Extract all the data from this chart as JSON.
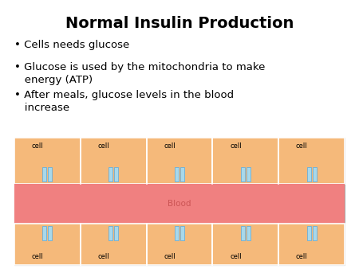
{
  "title": "Normal Insulin Production",
  "bullets": [
    "Cells needs glucose",
    "Glucose is used by the mitochondria to make\nenergy (ATP)",
    "After meals, glucose levels in the blood\nincrease"
  ],
  "cell_color": "#F5B97A",
  "blood_color": "#F08080",
  "blood_label": "Blood",
  "cell_label": "cell",
  "cell_receptor_color": "#A8D8EA",
  "cell_receptor_edge": "#6BAED6",
  "n_cells": 5,
  "background_color": "#FFFFFF",
  "diagram_border_color": "#AAAAAA",
  "title_fontsize": 14,
  "bullet_fontsize": 9.5,
  "cell_label_fontsize": 6,
  "blood_label_fontsize": 7.5,
  "blood_label_color": "#CC5555"
}
